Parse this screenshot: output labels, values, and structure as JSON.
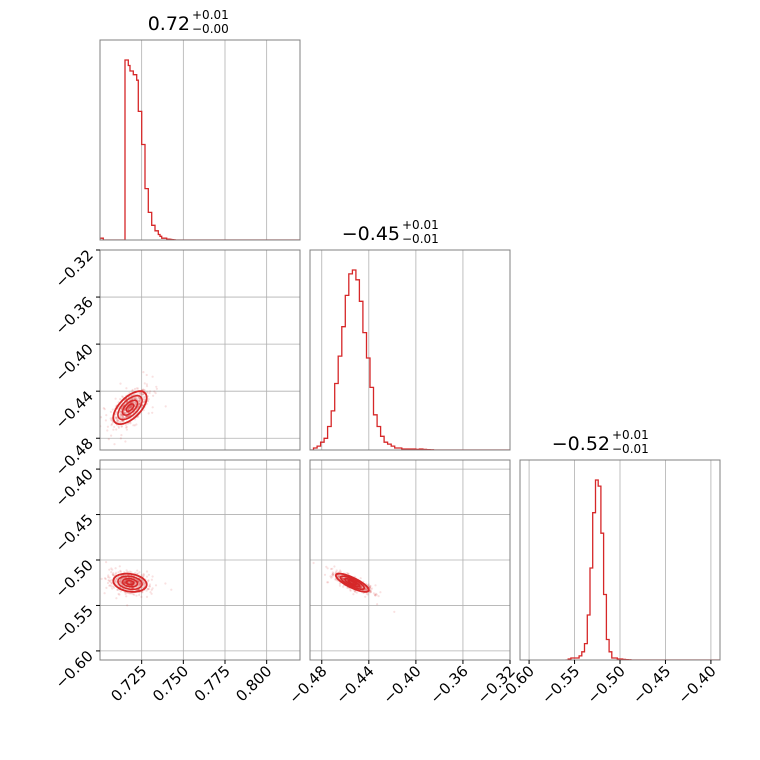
{
  "figure": {
    "type": "corner-plot",
    "accent_color": "#d62728"
  },
  "chart_data": {
    "type": "corner",
    "color": "#d62728",
    "params": [
      {
        "title": {
          "median": "0.72",
          "plus": "+0.01",
          "minus": "−0.00"
        },
        "range": [
          0.7,
          0.82
        ],
        "ticks": [
          0.725,
          0.75,
          0.775,
          0.8
        ],
        "tick_labels": [
          "0.725",
          "0.750",
          "0.775",
          "0.800"
        ],
        "center": 0.718,
        "sd": 0.005
      },
      {
        "title": {
          "median": "−0.45",
          "plus": "+0.01",
          "minus": "−0.01"
        },
        "range": [
          -0.49,
          -0.32
        ],
        "ticks": [
          -0.48,
          -0.44,
          -0.4,
          -0.36,
          -0.32
        ],
        "tick_labels": [
          "−0.48",
          "−0.44",
          "−0.40",
          "−0.36",
          "−0.32"
        ],
        "center": -0.454,
        "sd": 0.007
      },
      {
        "title": {
          "median": "−0.52",
          "plus": "+0.01",
          "minus": "−0.01"
        },
        "range": [
          -0.61,
          -0.39
        ],
        "ticks": [
          -0.6,
          -0.55,
          -0.5,
          -0.45,
          -0.4
        ],
        "tick_labels": [
          "−0.60",
          "−0.55",
          "−0.50",
          "−0.45",
          "−0.40"
        ],
        "center": -0.525,
        "sd": 0.005
      }
    ],
    "histograms": [
      {
        "param": 0,
        "bins": [
          0.7,
          0.701,
          0.702,
          0.703,
          0.704,
          0.705,
          0.706,
          0.707,
          0.708,
          0.709,
          0.71,
          0.711,
          0.712,
          0.713,
          0.714,
          0.715,
          0.716,
          0.717,
          0.718,
          0.719,
          0.72,
          0.721,
          0.722,
          0.723,
          0.724,
          0.725,
          0.726,
          0.727,
          0.728,
          0.729,
          0.73,
          0.731,
          0.732,
          0.733,
          0.734,
          0.735,
          0.736,
          0.737,
          0.738,
          0.739,
          0.74,
          0.741,
          0.742,
          0.743,
          0.744,
          0.745
        ],
        "counts": [
          1,
          1,
          0,
          0,
          0,
          0,
          0,
          0,
          0,
          0,
          0,
          0,
          0,
          0,
          0,
          98,
          98,
          95,
          92,
          92,
          90,
          90,
          87,
          70,
          70,
          52,
          52,
          28,
          28,
          15,
          15,
          8,
          8,
          5,
          5,
          3,
          2,
          1,
          1,
          1,
          0.5,
          0.5,
          0.3,
          0.2,
          0.1
        ]
      },
      {
        "param": 1,
        "bins": [
          -0.49,
          -0.487,
          -0.484,
          -0.481,
          -0.478,
          -0.475,
          -0.472,
          -0.469,
          -0.466,
          -0.463,
          -0.46,
          -0.457,
          -0.454,
          -0.451,
          -0.448,
          -0.445,
          -0.442,
          -0.439,
          -0.436,
          -0.433,
          -0.43,
          -0.427,
          -0.424,
          -0.421,
          -0.418,
          -0.415,
          -0.412,
          -0.409,
          -0.406,
          -0.403,
          -0.4,
          -0.397,
          -0.394,
          -0.391,
          -0.388,
          -0.385
        ],
        "counts": [
          0,
          1,
          2,
          4,
          6,
          12,
          20,
          34,
          48,
          63,
          79,
          90,
          92,
          87,
          76,
          60,
          47,
          32,
          18,
          12,
          7,
          4,
          3,
          2,
          1,
          1,
          0.5,
          0.5,
          0.5,
          0.5,
          0.3,
          0.5,
          0.3,
          0.2,
          0.1
        ]
      },
      {
        "param": 2,
        "bins": [
          -0.56,
          -0.557,
          -0.554,
          -0.551,
          -0.548,
          -0.545,
          -0.542,
          -0.539,
          -0.536,
          -0.533,
          -0.53,
          -0.527,
          -0.524,
          -0.521,
          -0.518,
          -0.515,
          -0.512,
          -0.509,
          -0.506,
          -0.503,
          -0.5,
          -0.497,
          -0.494,
          -0.491,
          -0.488
        ],
        "counts": [
          0,
          0.5,
          1,
          1,
          1,
          2,
          4,
          8,
          22,
          45,
          72,
          88,
          85,
          62,
          32,
          10,
          4,
          1,
          1,
          0.5,
          0.5,
          0.3,
          0.2,
          0.1
        ]
      }
    ],
    "pairs": [
      {
        "x": 0,
        "y": 1,
        "rho": 0.6
      },
      {
        "x": 0,
        "y": 2,
        "rho": -0.2
      },
      {
        "x": 1,
        "y": 2,
        "rho": -0.8
      }
    ]
  }
}
